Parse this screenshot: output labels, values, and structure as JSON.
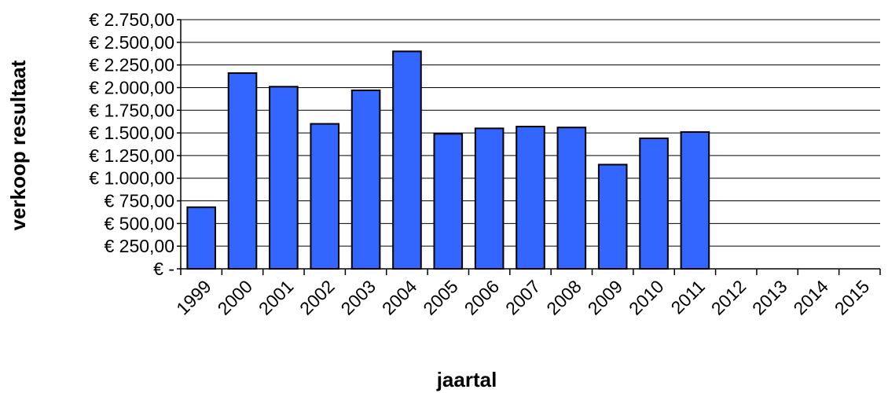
{
  "chart_data": {
    "type": "bar",
    "xlabel": "jaartal",
    "ylabel": "verkoop resultaat",
    "categories": [
      "1999",
      "2000",
      "2001",
      "2002",
      "2003",
      "2004",
      "2005",
      "2006",
      "2007",
      "2008",
      "2009",
      "2010",
      "2011",
      "2012",
      "2013",
      "2014",
      "2015"
    ],
    "values": [
      680,
      2160,
      2010,
      1600,
      1970,
      2400,
      1490,
      1550,
      1570,
      1560,
      1150,
      1440,
      1510,
      null,
      null,
      null,
      null
    ],
    "ylim": [
      0,
      2750
    ],
    "yticks": [
      0,
      250,
      500,
      750,
      1000,
      1250,
      1500,
      1750,
      2000,
      2250,
      2500,
      2750
    ],
    "ytick_labels": [
      "€ -",
      "€ 250,00",
      "€ 500,00",
      "€ 750,00",
      "€ 1.000,00",
      "€ 1.250,00",
      "€ 1.500,00",
      "€ 1.750,00",
      "€ 2.000,00",
      "€ 2.250,00",
      "€ 2.500,00",
      "€ 2.750,00"
    ],
    "grid": true,
    "legend": "none",
    "bar_color": "#3366ff"
  }
}
